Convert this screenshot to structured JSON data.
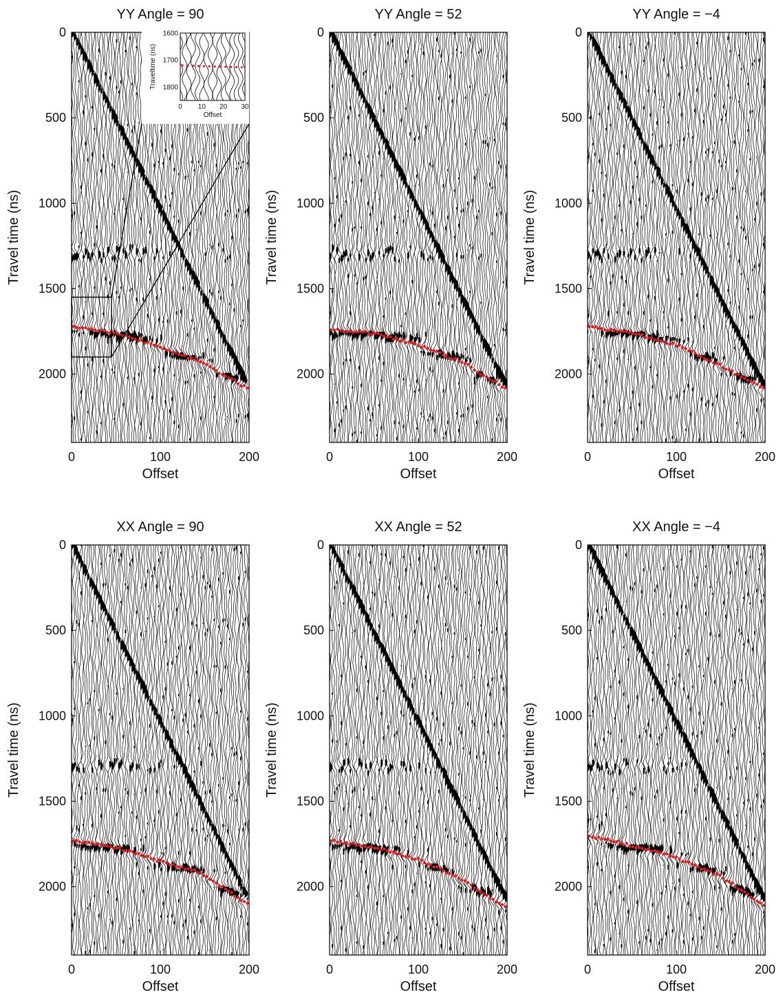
{
  "chart_data": [
    {
      "type": "line",
      "title": "YY Angle = 90",
      "xlabel": "Offset",
      "ylabel": "Travel time (ns)",
      "xlim": [
        0,
        200
      ],
      "ylim": [
        0,
        2400
      ],
      "xticks": [
        "0",
        "100",
        "200"
      ],
      "yticks": [
        "0",
        "500",
        "1000",
        "1500",
        "2000"
      ],
      "picks": {
        "x": [
          0,
          50,
          100,
          150,
          200
        ],
        "y": [
          1720,
          1760,
          1840,
          1940,
          2090
        ]
      },
      "inset": {
        "xlabel": "Offset",
        "ylabel": "Traveltime (ns)",
        "xticks": [
          "0",
          "10",
          "20",
          "30"
        ],
        "yticks": [
          "1600",
          "1700",
          "1800"
        ],
        "xlim": [
          0,
          30
        ],
        "ylim": [
          1600,
          1850
        ],
        "source_region": {
          "x": [
            0,
            45
          ],
          "y": [
            1550,
            1900
          ]
        }
      }
    },
    {
      "type": "line",
      "title": "YY Angle = 52",
      "xlabel": "Offset",
      "ylabel": "Travel time (ns)",
      "xlim": [
        0,
        200
      ],
      "ylim": [
        0,
        2400
      ],
      "xticks": [
        "0",
        "100",
        "200"
      ],
      "yticks": [
        "0",
        "500",
        "1000",
        "1500",
        "2000"
      ],
      "picks": {
        "x": [
          0,
          50,
          100,
          150,
          200
        ],
        "y": [
          1740,
          1760,
          1830,
          1930,
          2090
        ]
      }
    },
    {
      "type": "line",
      "title": "YY Angle = −4",
      "xlabel": "Offset",
      "ylabel": "Travel time (ns)",
      "xlim": [
        0,
        200
      ],
      "ylim": [
        0,
        2400
      ],
      "xticks": [
        "0",
        "100",
        "200"
      ],
      "yticks": [
        "0",
        "500",
        "1000",
        "1500",
        "2000"
      ],
      "picks": {
        "x": [
          0,
          50,
          100,
          150,
          200
        ],
        "y": [
          1720,
          1760,
          1830,
          1950,
          2090
        ]
      }
    },
    {
      "type": "line",
      "title": "XX Angle = 90",
      "xlabel": "Offset",
      "ylabel": "Travel time (ns)",
      "xlim": [
        0,
        200
      ],
      "ylim": [
        0,
        2400
      ],
      "xticks": [
        "0",
        "100",
        "200"
      ],
      "yticks": [
        "0",
        "500",
        "1000",
        "1500",
        "2000"
      ],
      "picks": {
        "x": [
          0,
          50,
          100,
          140,
          170,
          200
        ],
        "y": [
          1730,
          1770,
          1850,
          1910,
          2000,
          2110
        ]
      }
    },
    {
      "type": "line",
      "title": "XX Angle = 52",
      "xlabel": "Offset",
      "ylabel": "Travel time (ns)",
      "xlim": [
        0,
        200
      ],
      "ylim": [
        0,
        2400
      ],
      "xticks": [
        "0",
        "100",
        "200"
      ],
      "yticks": [
        "0",
        "500",
        "1000",
        "1500",
        "2000"
      ],
      "picks": {
        "x": [
          0,
          50,
          100,
          150,
          200
        ],
        "y": [
          1730,
          1770,
          1840,
          1960,
          2130
        ]
      }
    },
    {
      "type": "line",
      "title": "XX Angle = −4",
      "xlabel": "Offset",
      "ylabel": "Travel time (ns)",
      "xlim": [
        0,
        200
      ],
      "ylim": [
        0,
        2400
      ],
      "xticks": [
        "0",
        "100",
        "200"
      ],
      "yticks": [
        "0",
        "500",
        "1000",
        "1500",
        "2000"
      ],
      "picks": {
        "x": [
          0,
          50,
          100,
          150,
          200
        ],
        "y": [
          1700,
          1760,
          1830,
          1940,
          2110
        ]
      }
    }
  ],
  "colors": {
    "pick": "#e11d1d",
    "trace": "#000000",
    "background": "#ffffff"
  }
}
